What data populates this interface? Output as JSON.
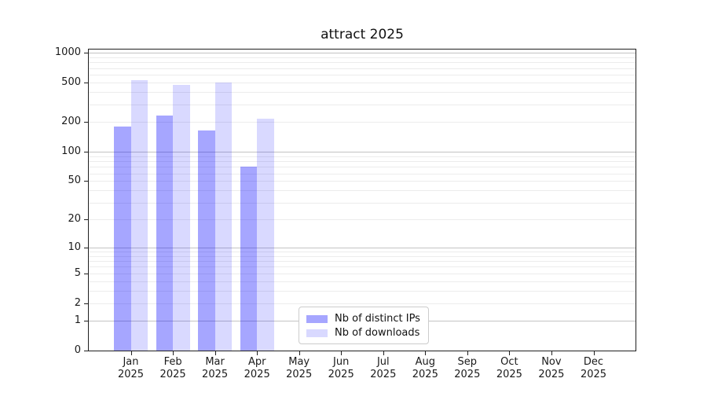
{
  "title": "attract 2025",
  "chart_data": {
    "type": "bar",
    "title": "attract 2025",
    "categories": [
      "Jan",
      "Feb",
      "Mar",
      "Apr",
      "May",
      "Jun",
      "Jul",
      "Aug",
      "Sep",
      "Oct",
      "Nov",
      "Dec"
    ],
    "xtick_year": "2025",
    "series": [
      {
        "name": "Nb of distinct IPs",
        "color": "rgba(0,0,255,0.35)",
        "values": [
          180,
          230,
          165,
          70,
          null,
          null,
          null,
          null,
          null,
          null,
          null,
          null
        ]
      },
      {
        "name": "Nb of downloads",
        "color": "rgba(0,0,255,0.15)",
        "values": [
          530,
          475,
          500,
          215,
          null,
          null,
          null,
          null,
          null,
          null,
          null,
          null
        ]
      }
    ],
    "yscale": "log1p",
    "yticks": [
      0,
      1,
      2,
      5,
      10,
      20,
      50,
      100,
      200,
      500,
      1000
    ],
    "ylim": [
      0,
      1070
    ],
    "grid": true,
    "grid_decade_values": [
      1,
      10,
      100,
      1000
    ],
    "colors": {
      "grid_decade": "#c3c3c3",
      "grid_minor": "#ececec",
      "spine": "#1f1f1f",
      "legend_border": "#cccccc"
    },
    "legend_position": "lower center-left inside plot"
  }
}
